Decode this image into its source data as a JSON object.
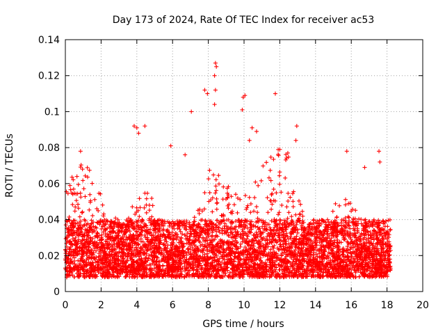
{
  "chart_data": {
    "type": "scatter",
    "title": "Day 173 of 2024, Rate Of TEC Index for receiver ac53",
    "xlabel": "GPS time / hours",
    "ylabel": "ROTI / TECUs",
    "xlim": [
      0,
      20
    ],
    "ylim": [
      0,
      0.14
    ],
    "xticks": [
      "0",
      "2",
      "4",
      "6",
      "8",
      "10",
      "12",
      "14",
      "16",
      "18",
      "20"
    ],
    "yticks": [
      "0",
      "0.02",
      "0.04",
      "0.06",
      "0.08",
      "0.1",
      "0.12",
      "0.14"
    ],
    "grid": true,
    "marker": "+",
    "color": "#ff0000",
    "time_range_hours": [
      0,
      18.2
    ],
    "dense_band_roti": [
      0.008,
      0.04
    ],
    "series": [
      {
        "name": "ac53",
        "outliers": [
          {
            "x": 0.85,
            "y": 0.078
          },
          {
            "x": 3.85,
            "y": 0.092
          },
          {
            "x": 4.0,
            "y": 0.091
          },
          {
            "x": 4.1,
            "y": 0.088
          },
          {
            "x": 4.45,
            "y": 0.092
          },
          {
            "x": 5.9,
            "y": 0.081
          },
          {
            "x": 6.7,
            "y": 0.076
          },
          {
            "x": 7.05,
            "y": 0.1
          },
          {
            "x": 7.8,
            "y": 0.112
          },
          {
            "x": 7.95,
            "y": 0.11
          },
          {
            "x": 8.35,
            "y": 0.12
          },
          {
            "x": 8.4,
            "y": 0.127
          },
          {
            "x": 8.45,
            "y": 0.125
          },
          {
            "x": 8.35,
            "y": 0.104
          },
          {
            "x": 8.4,
            "y": 0.112
          },
          {
            "x": 9.9,
            "y": 0.101
          },
          {
            "x": 9.95,
            "y": 0.108
          },
          {
            "x": 10.05,
            "y": 0.109
          },
          {
            "x": 10.3,
            "y": 0.084
          },
          {
            "x": 10.45,
            "y": 0.091
          },
          {
            "x": 10.7,
            "y": 0.089
          },
          {
            "x": 11.75,
            "y": 0.11
          },
          {
            "x": 12.95,
            "y": 0.092
          },
          {
            "x": 12.9,
            "y": 0.084
          },
          {
            "x": 15.75,
            "y": 0.078
          },
          {
            "x": 16.75,
            "y": 0.069
          },
          {
            "x": 17.55,
            "y": 0.078
          },
          {
            "x": 17.6,
            "y": 0.072
          }
        ]
      }
    ]
  }
}
